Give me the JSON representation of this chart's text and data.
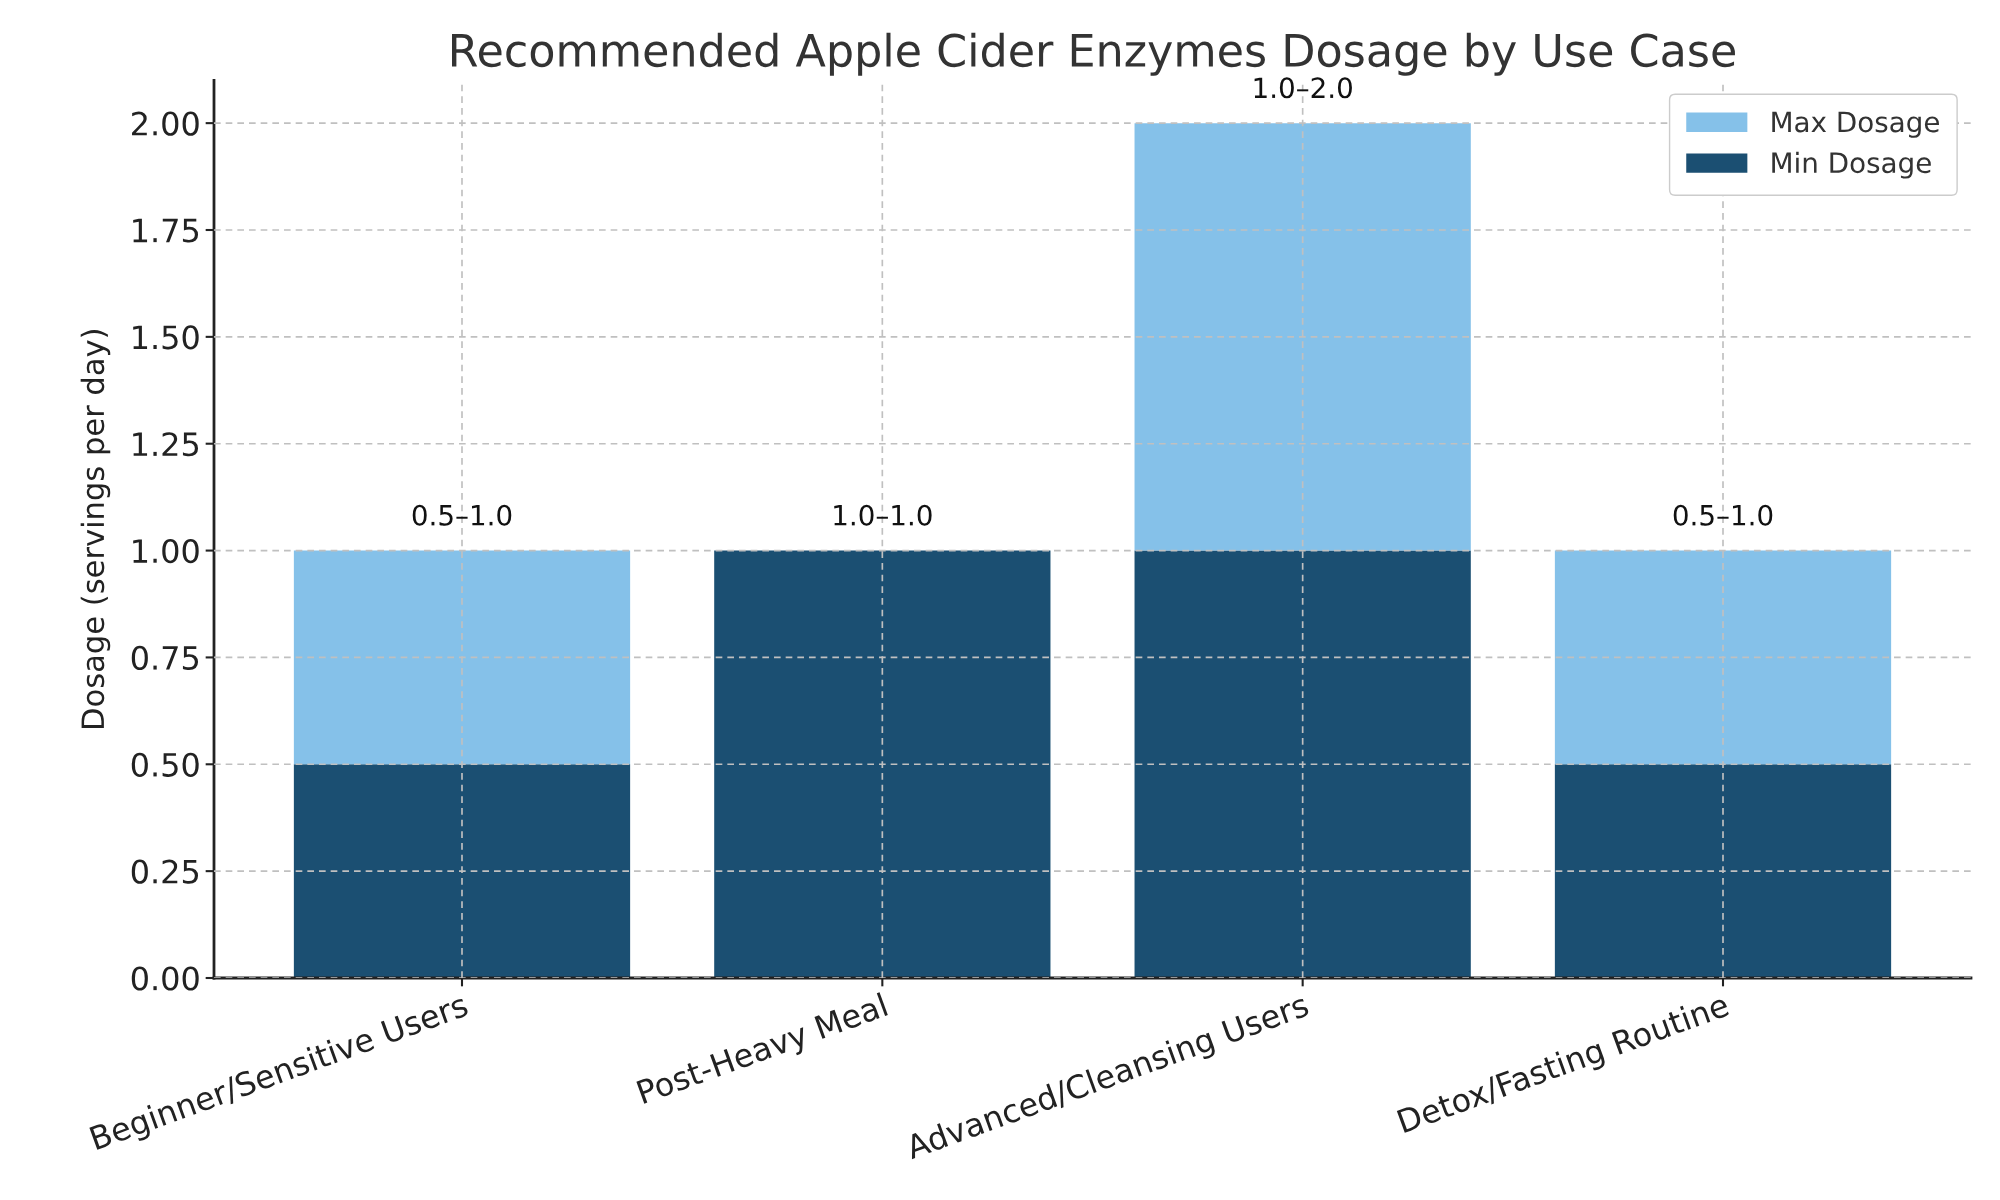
{
  "chart_data": {
    "type": "bar",
    "title": "Recommended Apple Cider Enzymes Dosage by Use Case",
    "ylabel": "Dosage (servings per day)",
    "categories": [
      "Beginner/Sensitive Users",
      "Post-Heavy Meal",
      "Advanced/Cleansing Users",
      "Detox/Fasting Routine"
    ],
    "stacked": true,
    "series": [
      {
        "name": "Min Dosage",
        "color": "#1b4f72",
        "values": [
          0.5,
          1.0,
          1.0,
          0.5
        ]
      },
      {
        "name": "Max Dosage",
        "color": "#85c1e9",
        "values": [
          0.5,
          0,
          1.0,
          0.5
        ]
      }
    ],
    "totals": [
      "0.5–1.0",
      "1.0–1.0",
      "1.0–2.0",
      "0.5–1.0"
    ],
    "ylim": [
      0,
      2.1
    ],
    "yticks": [
      {
        "value": 0,
        "label": "0.00"
      },
      {
        "value": 0.25,
        "label": "0.25"
      },
      {
        "value": 0.5,
        "label": "0.50"
      },
      {
        "value": 0.75,
        "label": "0.75"
      },
      {
        "value": 1.0,
        "label": "1.00"
      },
      {
        "value": 1.25,
        "label": "1.25"
      },
      {
        "value": 1.5,
        "label": "1.50"
      },
      {
        "value": 1.75,
        "label": "1.75"
      },
      {
        "value": 2.0,
        "label": "2.00"
      }
    ],
    "grid": true,
    "legend": "top right"
  }
}
